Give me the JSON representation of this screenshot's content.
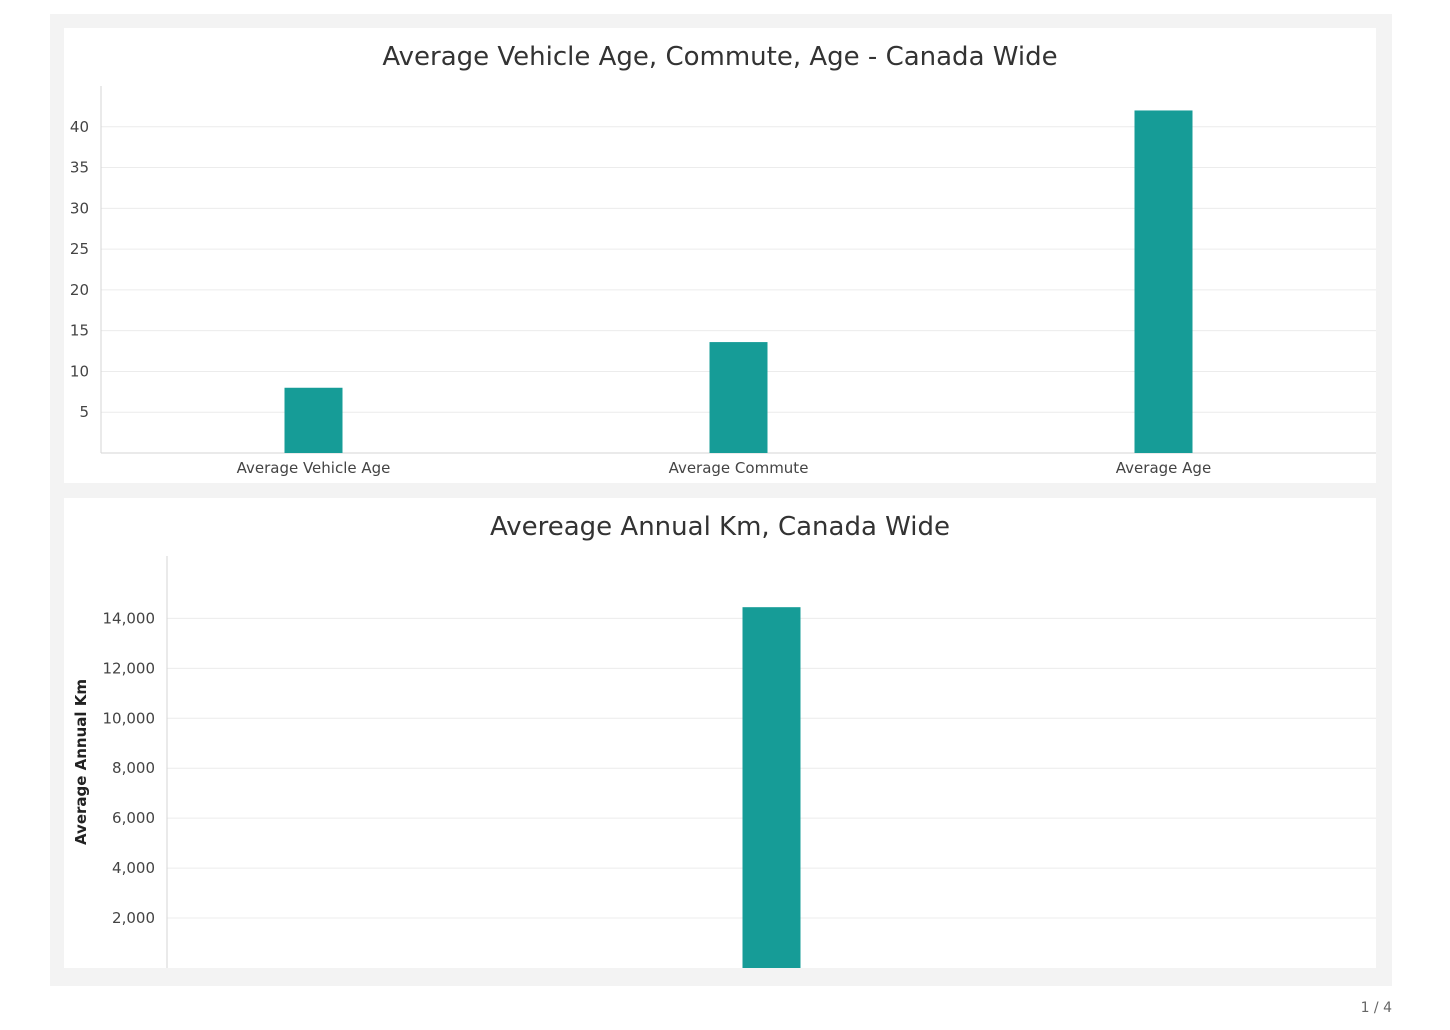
{
  "chart_data": [
    {
      "type": "bar",
      "title": "Average Vehicle Age, Commute, Age - Canada Wide",
      "categories": [
        "Average Vehicle Age",
        "Average Commute",
        "Average Age"
      ],
      "values": [
        8,
        13.6,
        42
      ],
      "ylim": [
        0,
        45
      ],
      "yticks": [
        5,
        10,
        15,
        20,
        25,
        30,
        35,
        40
      ],
      "xlabel": "",
      "ylabel": "",
      "grid": true,
      "bar_color": "#169c97"
    },
    {
      "type": "bar",
      "title": "Avereage Annual Km, Canada Wide",
      "categories": [
        ""
      ],
      "values": [
        14450
      ],
      "ylim": [
        0,
        16500
      ],
      "yticks": [
        2000,
        4000,
        6000,
        8000,
        10000,
        12000,
        14000
      ],
      "ytick_labels": [
        "2,000",
        "4,000",
        "6,000",
        "8,000",
        "10,000",
        "12,000",
        "14,000"
      ],
      "xlabel": "",
      "ylabel": "Average Annual Km",
      "grid": true,
      "bar_color": "#169c97"
    }
  ],
  "page_indicator": "1 / 4"
}
